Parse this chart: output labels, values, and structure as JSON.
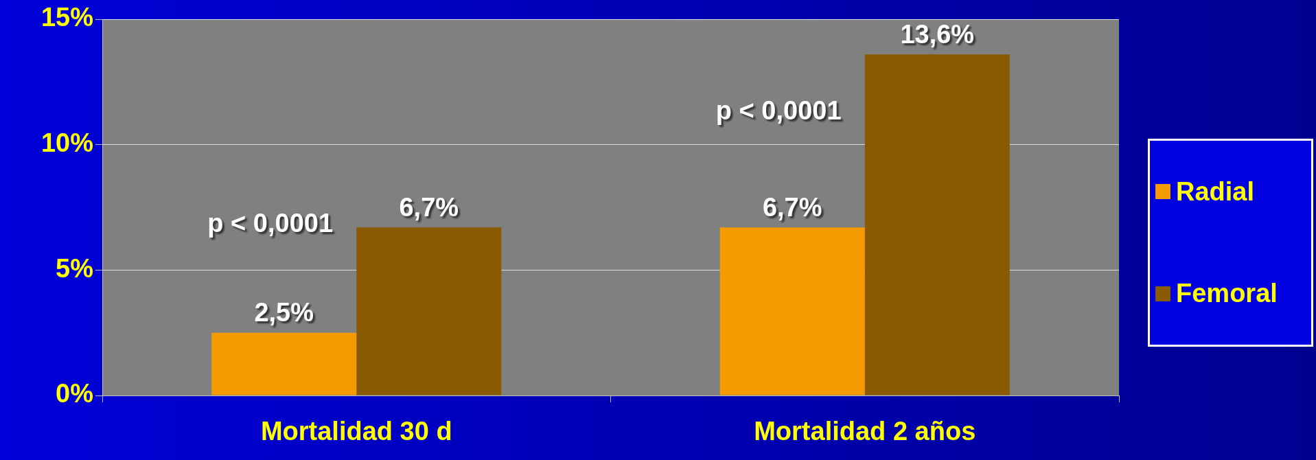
{
  "chart_data": {
    "type": "bar",
    "categories": [
      "Mortalidad 30 d",
      "Mortalidad 2 años"
    ],
    "series": [
      {
        "name": "Radial",
        "color": "#f59a00",
        "values": [
          2.5,
          6.7
        ],
        "value_labels": [
          "2,5%",
          "6,7%"
        ]
      },
      {
        "name": "Femoral",
        "color": "#8a5a00",
        "values": [
          6.7,
          13.6
        ],
        "value_labels": [
          "6,7%",
          "13,6%"
        ]
      }
    ],
    "ylim": [
      0,
      15
    ],
    "yticks": [
      {
        "value": 0,
        "label": "0%"
      },
      {
        "value": 5,
        "label": "5%"
      },
      {
        "value": 10,
        "label": "10%"
      },
      {
        "value": 15,
        "label": "15%"
      }
    ],
    "grid": "y",
    "legend": "right",
    "annotations": [
      {
        "text": "p < 0,0001",
        "x": "Mortalidad 30 d",
        "y": 6.8
      },
      {
        "text": "p < 0,0001",
        "x": "Mortalidad 2 años",
        "y": 11.3
      }
    ]
  }
}
